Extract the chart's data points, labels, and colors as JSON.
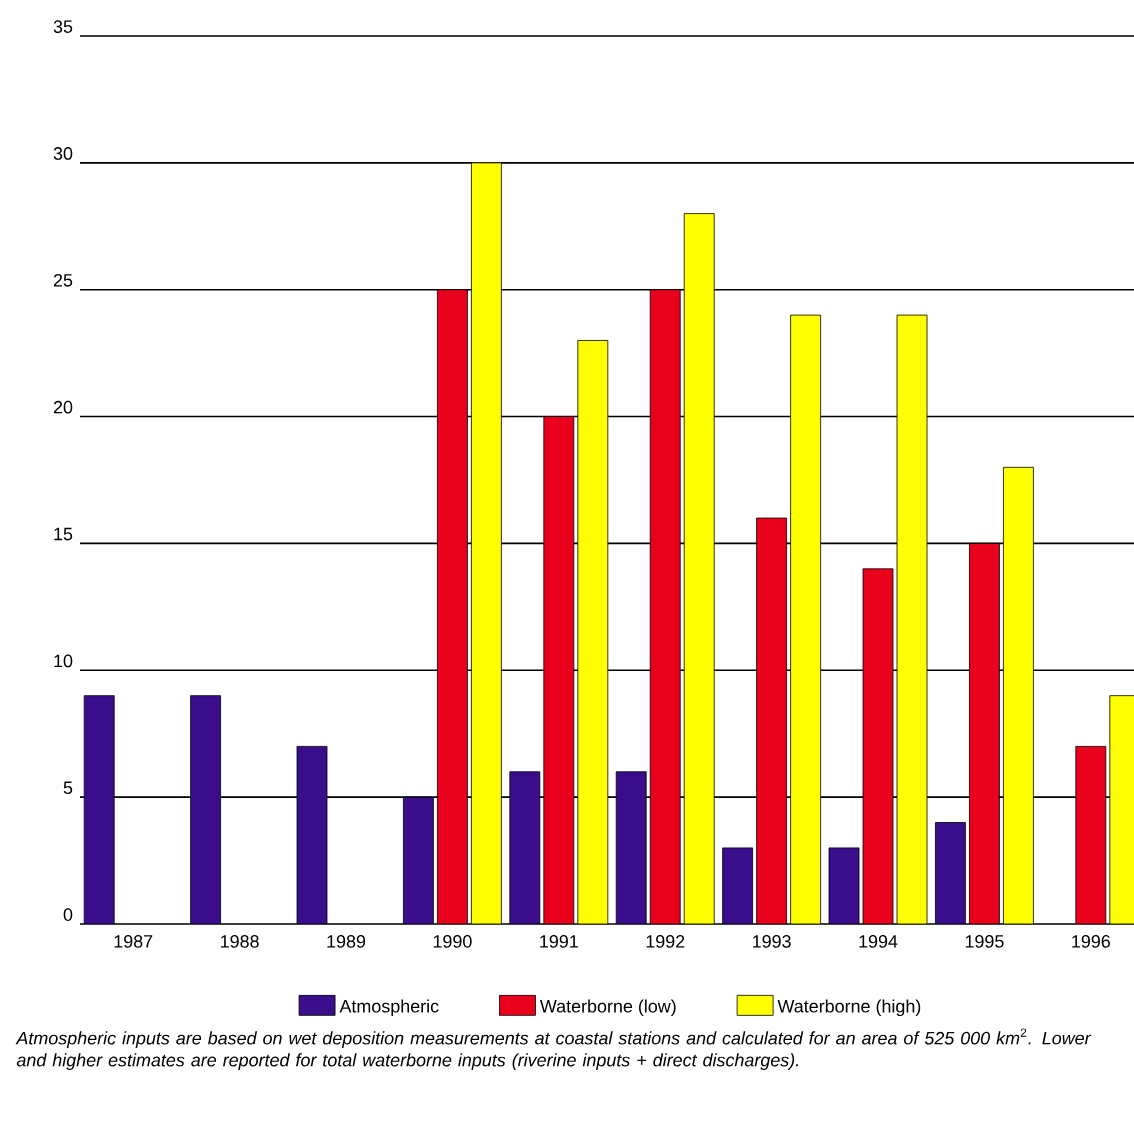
{
  "chart_data": {
    "type": "bar",
    "categories": [
      "1987",
      "1988",
      "1989",
      "1990",
      "1991",
      "1992",
      "1993",
      "1994",
      "1995",
      "1996"
    ],
    "series": [
      {
        "name": "Atmospheric",
        "color": "#3a0d8c",
        "values": [
          9,
          9,
          7,
          5,
          6,
          6,
          3,
          3,
          4,
          null
        ]
      },
      {
        "name": "Waterborne (low)",
        "color": "#e8001c",
        "values": [
          null,
          null,
          null,
          25,
          20,
          25,
          16,
          14,
          15,
          7
        ]
      },
      {
        "name": "Waterborne (high)",
        "color": "#ffff00",
        "values": [
          null,
          null,
          null,
          30,
          23,
          28,
          24,
          24,
          18,
          9
        ]
      }
    ],
    "ylim": [
      0,
      35
    ],
    "yticks": [
      0,
      5,
      10,
      15,
      20,
      25,
      30,
      35
    ],
    "grid": "y",
    "legend": "bottom",
    "annotations": [
      "*Atmospheric inputs are based on wet deposition measurements at coastal stations and calculated for an area of 525 000 km*$^{2}$*. Lower and higher estimates are reported for total waterborne inputs (riverine inputs + direct discharges).*"
    ]
  }
}
